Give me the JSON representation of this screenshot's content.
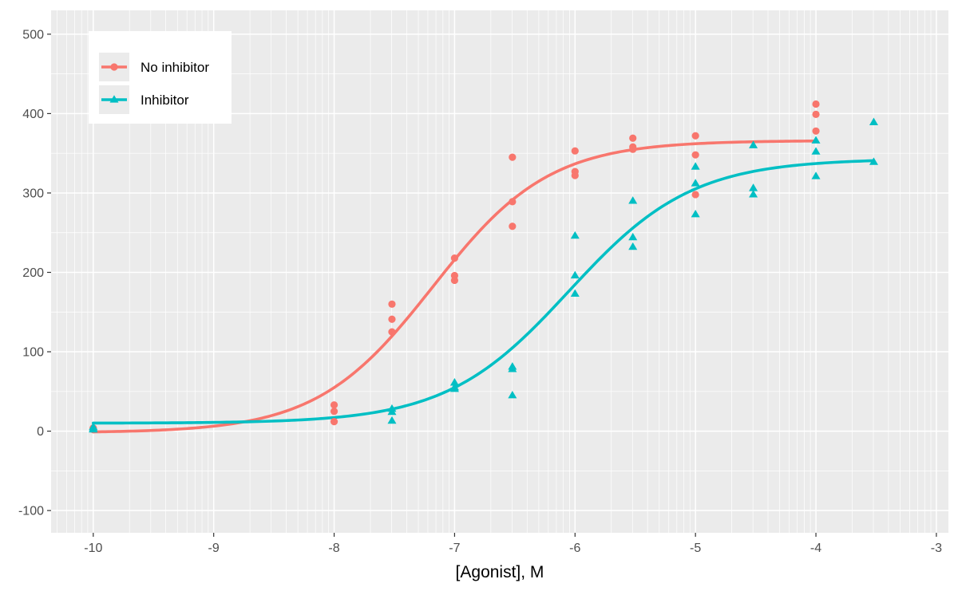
{
  "chart_data": {
    "type": "scatter",
    "title": "",
    "xlabel": "[Agonist], M",
    "ylabel": "",
    "xlim": [
      -10.35,
      -2.9
    ],
    "ylim": [
      -128,
      530
    ],
    "x_ticks": [
      -10,
      -9,
      -8,
      -7,
      -6,
      -5,
      -4,
      -3
    ],
    "x_tick_labels": [
      "-10",
      "-9",
      "-8",
      "-7",
      "-6",
      "-5",
      "-4",
      "-3"
    ],
    "y_ticks": [
      -100,
      0,
      100,
      200,
      300,
      400,
      500
    ],
    "y_tick_labels": [
      "-100",
      "0",
      "100",
      "200",
      "300",
      "400",
      "500"
    ],
    "grid": true,
    "legend_position": "top-left",
    "series": [
      {
        "name": "No inhibitor",
        "color": "#F8766D",
        "marker": "circle",
        "points": [
          [
            -10,
            3
          ],
          [
            -10,
            4
          ],
          [
            -10,
            2
          ],
          [
            -8,
            33
          ],
          [
            -8,
            25
          ],
          [
            -8,
            12
          ],
          [
            -7.52,
            160
          ],
          [
            -7.52,
            141
          ],
          [
            -7.52,
            125
          ],
          [
            -7,
            218
          ],
          [
            -7,
            196
          ],
          [
            -7,
            190
          ],
          [
            -6.52,
            345
          ],
          [
            -6.52,
            289
          ],
          [
            -6.52,
            258
          ],
          [
            -6,
            353
          ],
          [
            -6,
            327
          ],
          [
            -6,
            322
          ],
          [
            -5.52,
            369
          ],
          [
            -5.52,
            358
          ],
          [
            -5.52,
            355
          ],
          [
            -5,
            372
          ],
          [
            -5,
            348
          ],
          [
            -5,
            298
          ],
          [
            -4,
            412
          ],
          [
            -4,
            399
          ],
          [
            -4,
            378
          ]
        ],
        "fit": {
          "bottom": -2,
          "top": 366,
          "log_ec50": -7.18,
          "hill": 0.9,
          "x_range": [
            -10,
            -4
          ]
        }
      },
      {
        "name": "Inhibitor",
        "color": "#00BFC4",
        "marker": "triangle",
        "points": [
          [
            -10,
            3
          ],
          [
            -10,
            5
          ],
          [
            -10,
            2
          ],
          [
            -7.52,
            28
          ],
          [
            -7.52,
            24
          ],
          [
            -7.52,
            13
          ],
          [
            -7,
            61
          ],
          [
            -7,
            55
          ],
          [
            -7,
            53
          ],
          [
            -6.52,
            81
          ],
          [
            -6.52,
            78
          ],
          [
            -6.52,
            45
          ],
          [
            -6,
            246
          ],
          [
            -6,
            196
          ],
          [
            -6,
            173
          ],
          [
            -5.52,
            290
          ],
          [
            -5.52,
            244
          ],
          [
            -5.52,
            232
          ],
          [
            -5,
            333
          ],
          [
            -5,
            312
          ],
          [
            -5,
            273
          ],
          [
            -4.52,
            360
          ],
          [
            -4.52,
            306
          ],
          [
            -4.52,
            298
          ],
          [
            -4,
            366
          ],
          [
            -4,
            352
          ],
          [
            -4,
            321
          ],
          [
            -3.52,
            389
          ],
          [
            -3.52,
            339
          ]
        ],
        "fit": {
          "bottom": 10,
          "top": 343,
          "log_ec50": -6.05,
          "hill": 0.85,
          "x_range": [
            -10,
            -3.52
          ]
        }
      }
    ]
  }
}
